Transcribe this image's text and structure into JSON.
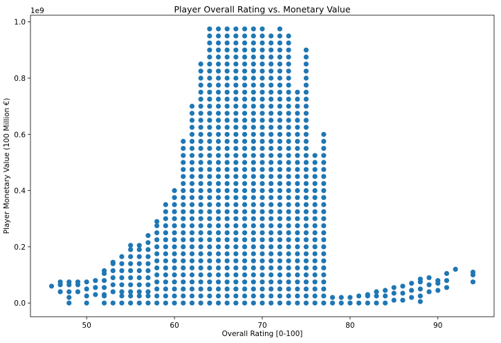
{
  "chart_data": {
    "type": "scatter",
    "title": "Player Overall Rating vs. Monetary Value",
    "xlabel": "Overall Rating [0-100]",
    "ylabel": "Player Monetary Value (100 Million €)",
    "y_offset_label": "1e9",
    "xlim": [
      43.6,
      96.4
    ],
    "ylim": [
      -48750000,
      1023750000
    ],
    "x_ticks": [
      50,
      60,
      70,
      80,
      90
    ],
    "y_ticks": [
      0.0,
      0.2,
      0.4,
      0.6,
      0.8,
      1.0
    ],
    "y_tick_labels": [
      "0.0",
      "0.2",
      "0.4",
      "0.6",
      "0.8",
      "1.0"
    ],
    "grid": false,
    "legend": "none",
    "marker_color": "#1f77b4",
    "note": "",
    "series": [
      {
        "points": []
      }
    ],
    "column_ranges": [
      {
        "x": 46,
        "y": [
          60000000,
          60000000
        ]
      },
      {
        "x": 47,
        "y": [
          40000000,
          75000000
        ]
      },
      {
        "x": 48,
        "y": [
          40000000,
          75000000
        ],
        "extra": [
          0,
          20000000
        ]
      },
      {
        "x": 49,
        "y": [
          40000000,
          75000000
        ]
      },
      {
        "x": 50,
        "y": [
          25000000,
          75000000
        ],
        "extra": [
          0
        ]
      },
      {
        "x": 51,
        "y": [
          30000000,
          80000000
        ]
      },
      {
        "x": 52,
        "y": [
          30000000,
          115000000
        ],
        "extra": [
          0,
          25000000
        ]
      },
      {
        "x": 53,
        "y": [
          40000000,
          145000000
        ],
        "extra": [
          0
        ]
      },
      {
        "x": 54,
        "y": [
          40000000,
          165000000
        ],
        "extra": [
          0,
          25000000
        ]
      },
      {
        "x": 55,
        "y": [
          40000000,
          205000000
        ],
        "extra": [
          0,
          25000000
        ]
      },
      {
        "x": 56,
        "y": [
          40000000,
          205000000
        ],
        "extra": [
          0,
          25000000
        ]
      },
      {
        "x": 57,
        "y": [
          40000000,
          240000000
        ],
        "extra": [
          0,
          25000000
        ]
      },
      {
        "x": 58,
        "y": [
          0,
          290000000
        ]
      },
      {
        "x": 59,
        "y": [
          0,
          350000000
        ]
      },
      {
        "x": 60,
        "y": [
          0,
          400000000
        ]
      },
      {
        "x": 61,
        "y": [
          0,
          575000000
        ]
      },
      {
        "x": 62,
        "y": [
          0,
          700000000
        ]
      },
      {
        "x": 63,
        "y": [
          0,
          850000000
        ]
      },
      {
        "x": 64,
        "y": [
          0,
          975000000
        ]
      },
      {
        "x": 65,
        "y": [
          0,
          975000000
        ]
      },
      {
        "x": 66,
        "y": [
          0,
          975000000
        ]
      },
      {
        "x": 67,
        "y": [
          0,
          975000000
        ]
      },
      {
        "x": 68,
        "y": [
          0,
          975000000
        ]
      },
      {
        "x": 69,
        "y": [
          0,
          975000000
        ]
      },
      {
        "x": 70,
        "y": [
          0,
          975000000
        ]
      },
      {
        "x": 71,
        "y": [
          0,
          950000000
        ]
      },
      {
        "x": 72,
        "y": [
          0,
          975000000
        ]
      },
      {
        "x": 73,
        "y": [
          0,
          950000000
        ]
      },
      {
        "x": 74,
        "y": [
          0,
          750000000
        ]
      },
      {
        "x": 75,
        "y": [
          0,
          900000000
        ]
      },
      {
        "x": 76,
        "y": [
          0,
          525000000
        ]
      },
      {
        "x": 77,
        "y": [
          0,
          600000000
        ]
      },
      {
        "x": 78,
        "y": [
          0,
          20000000
        ]
      },
      {
        "x": 79,
        "y": [
          0,
          20000000
        ]
      },
      {
        "x": 80,
        "y": [
          0,
          20000000
        ]
      },
      {
        "x": 81,
        "y": [
          0,
          25000000
        ]
      },
      {
        "x": 82,
        "y": [
          0,
          30000000
        ]
      },
      {
        "x": 83,
        "y": [
          0,
          40000000
        ]
      },
      {
        "x": 84,
        "y": [
          0,
          45000000
        ]
      },
      {
        "x": 85,
        "y": [
          10000000,
          55000000
        ]
      },
      {
        "x": 86,
        "y": [
          10000000,
          60000000
        ]
      },
      {
        "x": 87,
        "y": [
          20000000,
          70000000
        ]
      },
      {
        "x": 88,
        "y": [
          25000000,
          85000000
        ],
        "extra": [
          5000000
        ]
      },
      {
        "x": 89,
        "y": [
          40000000,
          90000000
        ]
      },
      {
        "x": 90,
        "y": [
          45000000,
          80000000
        ]
      },
      {
        "x": 91,
        "y": [
          55000000,
          105000000
        ]
      },
      {
        "x": 92,
        "y": [
          120000000,
          120000000
        ]
      },
      {
        "x": 94,
        "y": [
          75000000,
          110000000
        ]
      }
    ]
  }
}
